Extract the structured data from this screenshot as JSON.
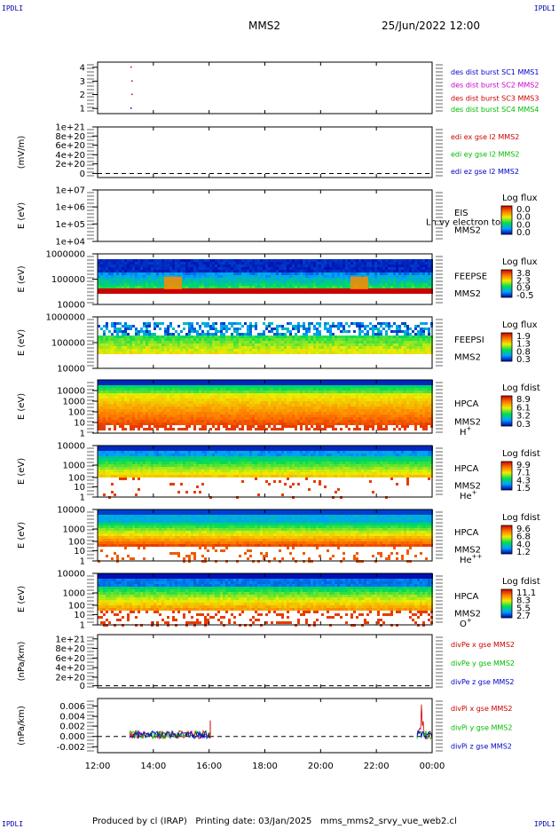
{
  "corner_label": "IPDLI",
  "header": {
    "mission": "MMS2",
    "datetime": "25/Jun/2022 12:00"
  },
  "footer": {
    "producer": "Produced by cl (IRAP)",
    "printing": "Printing date: 03/Jan/2025",
    "file": "mms_mms2_srvy_vue_web2.cl"
  },
  "colors": {
    "blue": "#0000cc",
    "magenta": "#cc00cc",
    "red": "#cc0000",
    "green": "#00bb00"
  },
  "chart_data": {
    "type": "line",
    "time_axis": {
      "ticks": [
        "12:00",
        "14:00",
        "16:00",
        "18:00",
        "20:00",
        "22:00",
        "00:00"
      ]
    },
    "panels": [
      {
        "id": "burst",
        "ylabel": "",
        "yticks": [
          "4",
          "3",
          "2",
          "1"
        ],
        "series": [
          {
            "name": "des dist burst SC1 MMS1",
            "color": "#0000cc"
          },
          {
            "name": "des dist burst SC2 MMS2",
            "color": "#cc00cc"
          },
          {
            "name": "des dist burst SC3 MMS3",
            "color": "#cc0000"
          },
          {
            "name": "des dist burst SC4 MMS4",
            "color": "#00bb00"
          }
        ]
      },
      {
        "id": "edi",
        "ylabel": "(mV/m)",
        "yticks": [
          "1e+21",
          "8e+20",
          "6e+20",
          "4e+20",
          "2e+20",
          "0"
        ],
        "series": [
          {
            "name": "edi ex gse l2 MMS2",
            "color": "#cc0000"
          },
          {
            "name": "edi ey gse l2 MMS2",
            "color": "#00bb00"
          },
          {
            "name": "edi ez gse l2 MMS2",
            "color": "#0000cc"
          }
        ]
      },
      {
        "id": "eis",
        "ylabel": "E (eV)",
        "yticks": [
          "1e+07",
          "1e+06",
          "1e+05",
          "1e+04"
        ],
        "instrument": [
          "EIS",
          "MMS2"
        ],
        "overlay": "Ln vy electron to",
        "colorbar": {
          "title": "Log flux",
          "ticks": [
            "0.0",
            "0.0",
            "0.0",
            "0.0"
          ]
        }
      },
      {
        "id": "feepse",
        "ylabel": "E (eV)",
        "yticks": [
          "1000000",
          "100000",
          "10000"
        ],
        "instrument": [
          "FEEPSE",
          "MMS2"
        ],
        "colorbar": {
          "title": "Log flux",
          "ticks": [
            "3.8",
            "2.3",
            "0.9",
            "-0.5"
          ]
        }
      },
      {
        "id": "feepsi",
        "ylabel": "E (eV)",
        "yticks": [
          "1000000",
          "100000",
          "10000"
        ],
        "instrument": [
          "FEEPSI",
          "MMS2"
        ],
        "colorbar": {
          "title": "Log flux",
          "ticks": [
            "1.9",
            "1.3",
            "0.8",
            "0.3"
          ]
        }
      },
      {
        "id": "hpca_h",
        "ylabel": "E (eV)",
        "yticks": [
          "10000",
          "1000",
          "100",
          "10",
          "1"
        ],
        "instrument": [
          "HPCA",
          "MMS2"
        ],
        "species": "H",
        "charge": "+",
        "colorbar": {
          "title": "Log fdist",
          "ticks": [
            "8.9",
            "6.1",
            "3.2",
            "0.3"
          ]
        }
      },
      {
        "id": "hpca_he",
        "ylabel": "E (eV)",
        "yticks": [
          "10000",
          "1000",
          "100",
          "10",
          "1"
        ],
        "instrument": [
          "HPCA",
          "MMS2"
        ],
        "species": "He",
        "charge": "+",
        "colorbar": {
          "title": "Log fdist",
          "ticks": [
            "9.9",
            "7.1",
            "4.3",
            "1.5"
          ]
        }
      },
      {
        "id": "hpca_hepp",
        "ylabel": "E (eV)",
        "yticks": [
          "10000",
          "1000",
          "100",
          "10",
          "1"
        ],
        "instrument": [
          "HPCA",
          "MMS2"
        ],
        "species": "He",
        "charge": "++",
        "colorbar": {
          "title": "Log fdist",
          "ticks": [
            "9.6",
            "6.8",
            "4.0",
            "1.2"
          ]
        }
      },
      {
        "id": "hpca_o",
        "ylabel": "E (eV)",
        "yticks": [
          "10000",
          "1000",
          "100",
          "10",
          "1"
        ],
        "instrument": [
          "HPCA",
          "MMS2"
        ],
        "species": "O",
        "charge": "+",
        "colorbar": {
          "title": "Log fdist",
          "ticks": [
            "11.1",
            "8.3",
            "5.5",
            "2.7"
          ]
        }
      },
      {
        "id": "divpe",
        "ylabel": "(nPa/km)",
        "yticks": [
          "1e+21",
          "8e+20",
          "6e+20",
          "4e+20",
          "2e+20",
          "0"
        ],
        "series": [
          {
            "name": "divPe x gse MMS2",
            "color": "#cc0000"
          },
          {
            "name": "divPe y gse MMS2",
            "color": "#00bb00"
          },
          {
            "name": "divPe z gse MMS2",
            "color": "#0000cc"
          }
        ]
      },
      {
        "id": "divpi",
        "ylabel": "(nPa/km)",
        "yticks": [
          "0.006",
          "0.004",
          "0.002",
          "0.000",
          "-0.002"
        ],
        "series": [
          {
            "name": "divPi x gse MMS2",
            "color": "#cc0000"
          },
          {
            "name": "divPi y gse MMS2",
            "color": "#00bb00"
          },
          {
            "name": "divPi z gse MMS2",
            "color": "#0000cc"
          }
        ]
      }
    ]
  }
}
